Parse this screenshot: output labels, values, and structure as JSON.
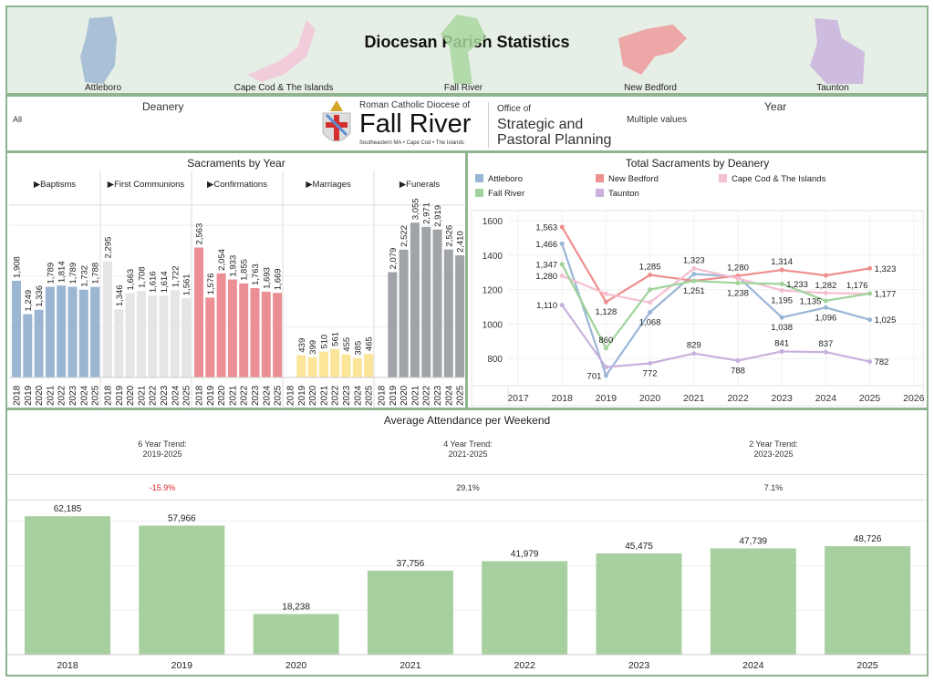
{
  "header": {
    "title": "Diocesan Parish Statistics",
    "maps": [
      {
        "label": "Attleboro",
        "color": "#9db7d3"
      },
      {
        "label": "Cape Cod & The Islands",
        "color": "#f2c7d8"
      },
      {
        "label": "Fall River",
        "color": "#a9d69f"
      },
      {
        "label": "New Bedford",
        "color": "#ec9a9a"
      },
      {
        "label": "Taunton",
        "color": "#c9b3dc"
      }
    ]
  },
  "filters": {
    "deanery_label": "Deanery",
    "deanery_value": "All",
    "year_label": "Year",
    "year_value": "Multiple values"
  },
  "logo": {
    "line1": "Roman Catholic Diocese of",
    "line2": "Fall River",
    "line3": "Southeastern MA • Cape Cod • The Islands",
    "office": "Office of",
    "office2": "Strategic and",
    "office3": "Pastoral Planning"
  },
  "chart_data": [
    {
      "type": "bar",
      "title": "Sacraments by Year",
      "categories": [
        "2018",
        "2019",
        "2020",
        "2021",
        "2022",
        "2023",
        "2024",
        "2025"
      ],
      "series": [
        {
          "name": "▶Baptisms",
          "color": "#9ab6d2",
          "values": [
            1908,
            1249,
            1336,
            1789,
            1814,
            1789,
            1732,
            1788
          ]
        },
        {
          "name": "▶First Communions",
          "color": "#e5e5e5",
          "values": [
            2295,
            1346,
            1663,
            1708,
            1616,
            1614,
            1722,
            1561
          ]
        },
        {
          "name": "▶Confirmations",
          "color": "#eb8f94",
          "values": [
            2563,
            1576,
            2054,
            1933,
            1855,
            1763,
            1693,
            1669
          ]
        },
        {
          "name": "▶Marriages",
          "color": "#fbe599",
          "values": [
            null,
            439,
            399,
            510,
            561,
            455,
            385,
            465
          ]
        },
        {
          "name": "▶Funerals",
          "color": "#a0a3a8",
          "values": [
            null,
            2079,
            2522,
            3055,
            2971,
            2919,
            2526,
            2410
          ]
        }
      ],
      "ylim": [
        0,
        3400
      ],
      "grid": true
    },
    {
      "type": "line",
      "title": "Total Sacraments by Deanery",
      "x": [
        2018,
        2019,
        2020,
        2021,
        2022,
        2023,
        2024,
        2025
      ],
      "xticks": [
        "2017",
        "2018",
        "2019",
        "2020",
        "2021",
        "2022",
        "2023",
        "2024",
        "2025",
        "2026"
      ],
      "yticks": [
        "800",
        "1000",
        "1200",
        "1400",
        "1600"
      ],
      "ylim": [
        650,
        1650
      ],
      "legend": "top",
      "series": [
        {
          "name": "Attleboro",
          "color": "#9ab6d6",
          "values": [
            1466,
            701,
            1068,
            1290,
            1275,
            1038,
            1096,
            1025
          ],
          "labels": [
            "1,466",
            "701",
            "1,068",
            "",
            "",
            "1,038",
            "1,096",
            "1,025"
          ]
        },
        {
          "name": "New Bedford",
          "color": "#ee8f8f",
          "values": [
            1563,
            1128,
            1285,
            1251,
            1280,
            1314,
            1282,
            1323
          ],
          "labels": [
            "1,563",
            "1,128",
            "1,285",
            "1,251",
            "1,280",
            "1,314",
            "1,282",
            "1,323"
          ]
        },
        {
          "name": "Cape Cod & The Islands",
          "color": "#f5bfd2",
          "values": [
            1280,
            1175,
            1125,
            1323,
            1265,
            1195,
            1180,
            1176
          ],
          "labels": [
            "1,280",
            "",
            "",
            "1,323",
            "",
            "1,195",
            "",
            "1,176"
          ]
        },
        {
          "name": "Fall River",
          "color": "#9fd49a",
          "values": [
            1347,
            860,
            1200,
            1250,
            1238,
            1233,
            1135,
            1177
          ],
          "labels": [
            "1,347",
            "860",
            "",
            "",
            "1,238",
            "1,233",
            "1,135",
            "1,177"
          ]
        },
        {
          "name": "Taunton",
          "color": "#c8b1dc",
          "values": [
            1110,
            750,
            772,
            829,
            788,
            841,
            837,
            782
          ],
          "labels": [
            "1,110",
            "",
            "772",
            "829",
            "788",
            "841",
            "837",
            "782"
          ]
        }
      ]
    },
    {
      "type": "bar",
      "title": "Average Attendance per Weekend",
      "categories": [
        "2018",
        "2019",
        "2020",
        "2021",
        "2022",
        "2023",
        "2024",
        "2025"
      ],
      "values": [
        62185,
        57966,
        18238,
        37756,
        41979,
        45475,
        47739,
        48726
      ],
      "labels": [
        "62,185",
        "57,966",
        "18,238",
        "37,756",
        "41,979",
        "45,475",
        "47,739",
        "48,726"
      ],
      "color": "#a8cf9f",
      "ylim": [
        0,
        68000
      ],
      "grid": true
    }
  ],
  "trends": [
    {
      "title": "6 Year Trend:",
      "range": "2019-2025",
      "value": "-15.9%",
      "color": "#d62728"
    },
    {
      "title": "4 Year Trend:",
      "range": "2021-2025",
      "value": "29.1%",
      "color": "#333333"
    },
    {
      "title": "2 Year Trend:",
      "range": "2023-2025",
      "value": "7.1%",
      "color": "#333333"
    }
  ]
}
